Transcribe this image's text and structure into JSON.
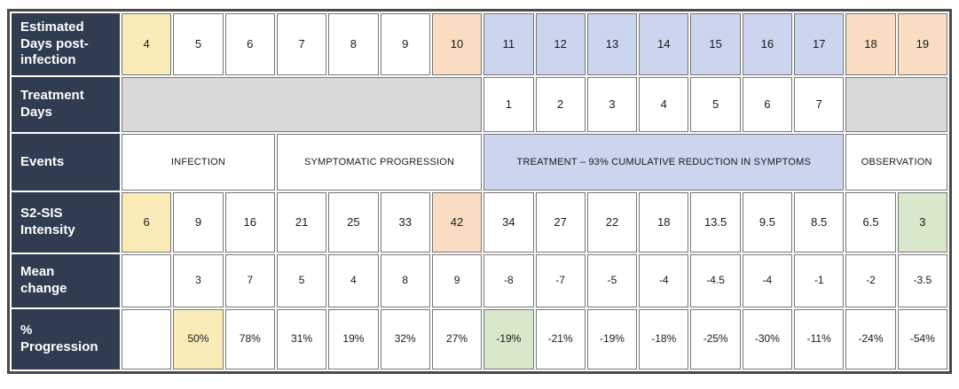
{
  "colors": {
    "navy": "#303C50",
    "yellow": "#FAECB9",
    "peach": "#F9DCC2",
    "blue": "#CBD5EE",
    "green": "#D9E7CA",
    "gray": "#D9D9D9",
    "cellBorder": "#757575",
    "outerBorder": "#4A4A4A",
    "headerText": "#FFFFFF",
    "numberText": "#1A1A1A"
  },
  "chart_data": {
    "type": "table",
    "row_labels": {
      "days": "Estimated\nDays post-\ninfection",
      "treatment": "Treatment\nDays",
      "events": "Events",
      "intensity": "S2-SIS\nIntensity",
      "mean": "Mean\nchange",
      "progression": "%\nProgression"
    },
    "days": [
      "4",
      "5",
      "6",
      "7",
      "8",
      "9",
      "10",
      "11",
      "12",
      "13",
      "14",
      "15",
      "16",
      "17",
      "18",
      "19"
    ],
    "treatment_days": [
      "1",
      "2",
      "3",
      "4",
      "5",
      "6",
      "7"
    ],
    "events": [
      "INFECTION",
      "SYMPTOMATIC PROGRESSION",
      "TREATMENT – 93% CUMULATIVE REDUCTION IN SYMPTOMS",
      "OBSERVATION"
    ],
    "intensity": [
      "6",
      "9",
      "16",
      "21",
      "25",
      "33",
      "42",
      "34",
      "27",
      "22",
      "18",
      "13.5",
      "9.5",
      "8.5",
      "6.5",
      "3"
    ],
    "mean_change": [
      "",
      "3",
      "7",
      "5",
      "4",
      "8",
      "9",
      "-8",
      "-7",
      "-5",
      "-4",
      "-4.5",
      "-4",
      "-1",
      "-2",
      "-3.5"
    ],
    "progression": [
      "",
      "50%",
      "78%",
      "31%",
      "19%",
      "32%",
      "27%",
      "-19%",
      "-21%",
      "-19%",
      "-18%",
      "-25%",
      "-30%",
      "-11%",
      "-24%",
      "-54%"
    ]
  }
}
